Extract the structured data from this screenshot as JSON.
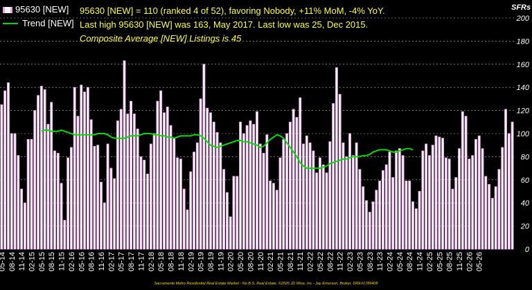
{
  "legend": {
    "bar_label": "95630 [NEW]",
    "line_label": "Trend [NEW]"
  },
  "info": {
    "line1": "95630 [NEW] = 110 (ranked 4 of 52), favoring Nobody, +11% MoM, -4% YoY.",
    "line2": "Last high 95630 [NEW] was 163, May 2017. Last low was 25, Dec 2015.",
    "line3": "Composite Average [NEW] Listings is 45"
  },
  "footer": "Sacramento Metro Residential Real Estate Market - No B.S. Real Estate, ©2026 JD Wise, Inc - Jay Emerson, Broker, DRE#1789408",
  "colors": {
    "background": "#000000",
    "bar_fill": "#ffffff",
    "bar_edge": "#e9a0e9",
    "trend": "#00dd00",
    "info_text": "#ffff33",
    "grid": "#ffffff"
  },
  "chart_data": {
    "type": "bar",
    "ylabel": "SFRs",
    "ylim": [
      0,
      200
    ],
    "yticks": [
      0,
      20,
      40,
      60,
      80,
      100,
      120,
      140,
      160,
      180,
      200
    ],
    "grid": "horizontal dashed",
    "legend_position": "top-left",
    "xtick_labels": [
      "05-14",
      "08-14",
      "11-14",
      "02-15",
      "05-15",
      "08-15",
      "11-15",
      "02-16",
      "05-16",
      "08-16",
      "11-16",
      "02-17",
      "05-17",
      "08-17",
      "11-17",
      "02-18",
      "05-18",
      "08-18",
      "11-18",
      "02-19",
      "05-19",
      "08-19",
      "11-19",
      "02-20",
      "05-20",
      "08-20",
      "11-20",
      "02-21",
      "05-21",
      "08-21",
      "11-21",
      "02-22",
      "05-22",
      "08-22",
      "11-22",
      "02-23",
      "05-23",
      "08-23",
      "11-23",
      "02-24",
      "05-24",
      "08-24",
      "11-24",
      "02-25",
      "05-25",
      "08-25",
      "11-25",
      "02-26",
      "05-26"
    ],
    "series": [
      {
        "name": "95630 [NEW]",
        "type": "bar",
        "start": "05-14",
        "values": [
          125,
          137,
          144,
          100,
          100,
          81,
          52,
          40,
          95,
          95,
          120,
          133,
          141,
          138,
          108,
          127,
          85,
          83,
          57,
          25,
          79,
          88,
          140,
          115,
          142,
          136,
          140,
          112,
          89,
          90,
          58,
          40,
          91,
          70,
          61,
          111,
          121,
          163,
          117,
          128,
          117,
          104,
          80,
          77,
          65,
          91,
          100,
          128,
          137,
          118,
          123,
          107,
          96,
          79,
          78,
          52,
          34,
          67,
          84,
          92,
          130,
          160,
          122,
          118,
          110,
          101,
          92,
          69,
          49,
          28,
          63,
          63,
          110,
          100,
          107,
          111,
          108,
          119,
          91,
          83,
          99,
          59,
          57,
          51,
          79,
          95,
          100,
          110,
          121,
          114,
          131,
          91,
          98,
          92,
          85,
          66,
          79,
          73,
          66,
          93,
          126,
          157,
          134,
          92,
          80,
          100,
          81,
          92,
          69,
          54,
          42,
          32,
          41,
          51,
          59,
          68,
          73,
          84,
          62,
          85,
          87,
          81,
          59,
          59,
          41,
          35,
          50,
          85,
          91,
          81,
          90,
          98,
          97,
          96,
          79,
          78,
          52,
          62,
          87,
          119,
          115,
          78,
          81,
          95,
          98,
          87,
          63,
          56,
          44,
          54,
          69,
          88,
          121,
          100,
          110
        ]
      },
      {
        "name": "Trend [NEW]",
        "type": "line",
        "start": "05-15",
        "values": [
          102,
          103,
          103,
          102,
          102,
          102,
          103,
          102,
          101,
          100,
          99,
          99,
          99,
          99,
          99,
          99,
          99,
          100,
          100,
          100,
          99,
          97,
          96,
          96,
          96,
          96,
          97,
          98,
          98,
          98,
          99,
          100,
          100,
          100,
          99,
          99,
          98,
          98,
          97,
          97,
          96,
          97,
          98,
          98,
          98,
          98,
          99,
          99,
          98,
          96,
          93,
          90,
          89,
          88,
          89,
          90,
          91,
          92,
          93,
          94,
          94,
          93,
          93,
          92,
          91,
          90,
          88,
          89,
          92,
          95,
          97,
          99,
          98,
          96,
          92,
          88,
          84,
          80,
          75,
          72,
          70,
          70,
          70,
          70,
          70,
          71,
          72,
          74,
          75,
          76,
          77,
          78,
          78,
          79,
          80,
          80,
          80,
          81,
          81,
          82,
          84,
          85,
          86,
          86,
          86,
          85,
          84,
          84,
          85,
          86,
          87,
          87,
          86
        ]
      }
    ]
  }
}
